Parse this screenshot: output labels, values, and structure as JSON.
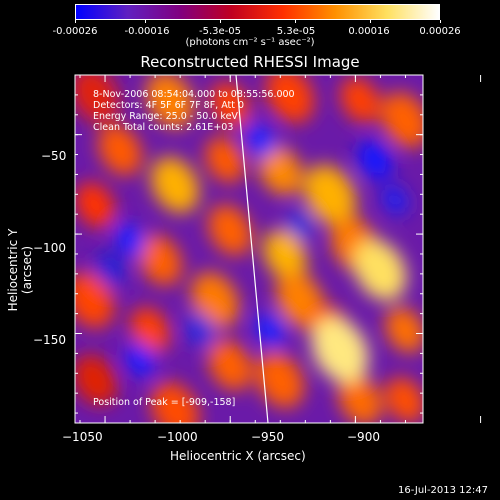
{
  "colorbar": {
    "tick_labels": [
      "-0.00026",
      "-0.00016",
      "-5.3e-05",
      "5.3e-05",
      "0.00016",
      "0.00026"
    ],
    "tick_values": [
      -0.00026,
      -0.00016,
      -5.3e-05,
      5.3e-05,
      0.00016,
      0.00026
    ],
    "range": [
      -0.00026,
      0.00026
    ],
    "units": "(photons cm⁻² s⁻¹ asec⁻²)",
    "colors": [
      "#0000ff",
      "#6020c0",
      "#800080",
      "#c00020",
      "#ff3000",
      "#ff9000",
      "#ffe060",
      "#ffffff"
    ]
  },
  "chart_data": {
    "type": "heatmap",
    "title": "Reconstructed RHESSI Image",
    "xlabel": "Heliocentric X (arcsec)",
    "ylabel": "Heliocentric Y (arcsec)",
    "xlim": [
      -1062,
      -923
    ],
    "ylim": [
      -195,
      -20
    ],
    "x_ticks": [
      -1050,
      -1000,
      -950,
      -900
    ],
    "x_tick_labels": [
      "−1050",
      "−1000",
      "−950",
      "−900"
    ],
    "y_ticks": [
      -50,
      -100,
      -150
    ],
    "y_tick_labels": [
      "−50",
      "−100",
      "−150"
    ],
    "peak": [
      -909,
      -158
    ],
    "annotations": [
      "8-Nov-2006 08:54:04.000 to 08:55:56.000",
      "Detectors: 4F 5F 6F 7F 8F, Att 0",
      "Energy Range: 25.0 - 50.0 keV",
      "Clean    Total counts: 2.61E+03"
    ],
    "peak_label": "Position of Peak = [-909,-158]"
  },
  "timestamp": "16-Jul-2013 12:47"
}
